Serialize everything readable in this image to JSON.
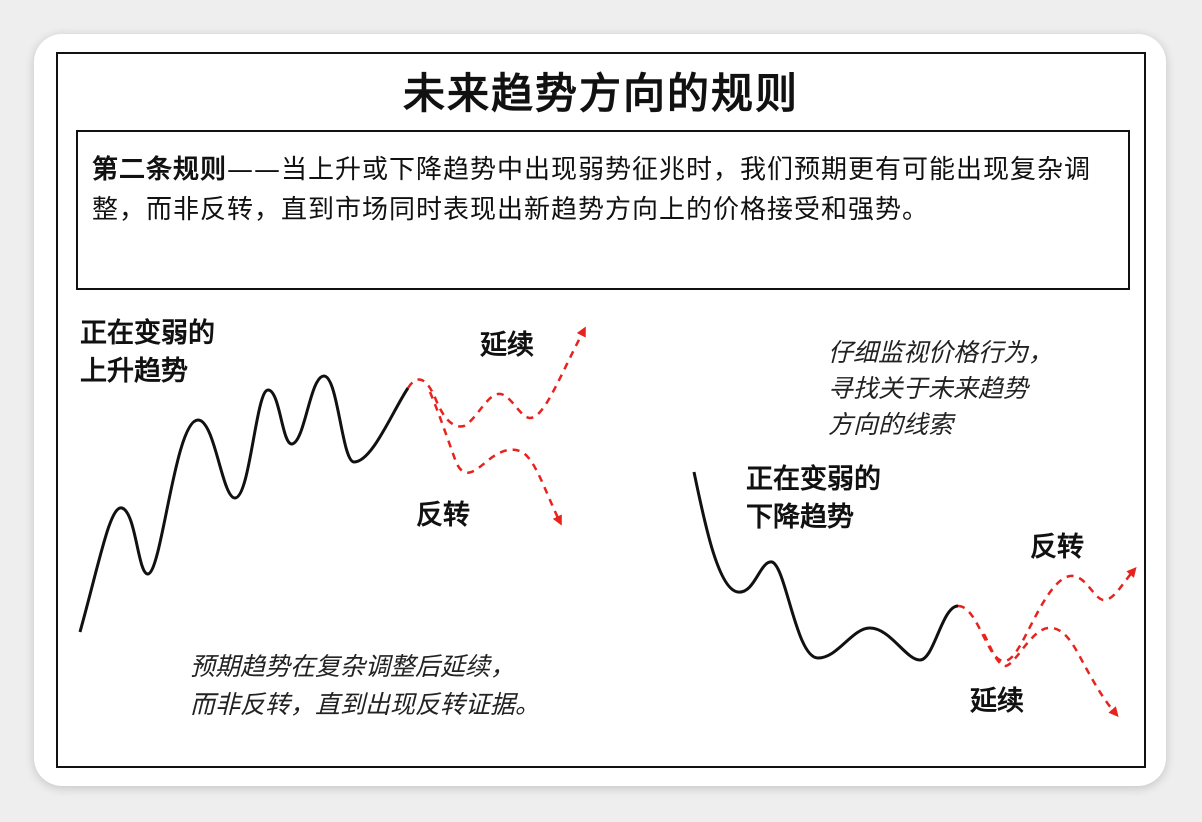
{
  "title": "未来趋势方向的规则",
  "rule": {
    "heading": "第二条规则",
    "text": "——当上升或下降趋势中出现弱势征兆时，我们预期更有可能出现复杂调整，而非反转，直到市场同时表现出新趋势方向上的价格接受和强势。"
  },
  "left_panel": {
    "label_line1": "正在变弱的",
    "label_line2": "上升趋势",
    "continue_label": "延续",
    "reverse_label": "反转",
    "note_line1": "预期趋势在复杂调整后延续，",
    "note_line2": "而非反转，直到出现反转证据。"
  },
  "right_panel": {
    "label_line1": "正在变弱的",
    "label_line2": "下降趋势",
    "continue_label": "延续",
    "reverse_label": "反转",
    "note_line1": "仔细监视价格行为，",
    "note_line2": "寻找关于未来趋势",
    "note_line3": "方向的线索"
  },
  "colors": {
    "price_line": "#111111",
    "projection": "#e8231e",
    "border": "#111111"
  }
}
